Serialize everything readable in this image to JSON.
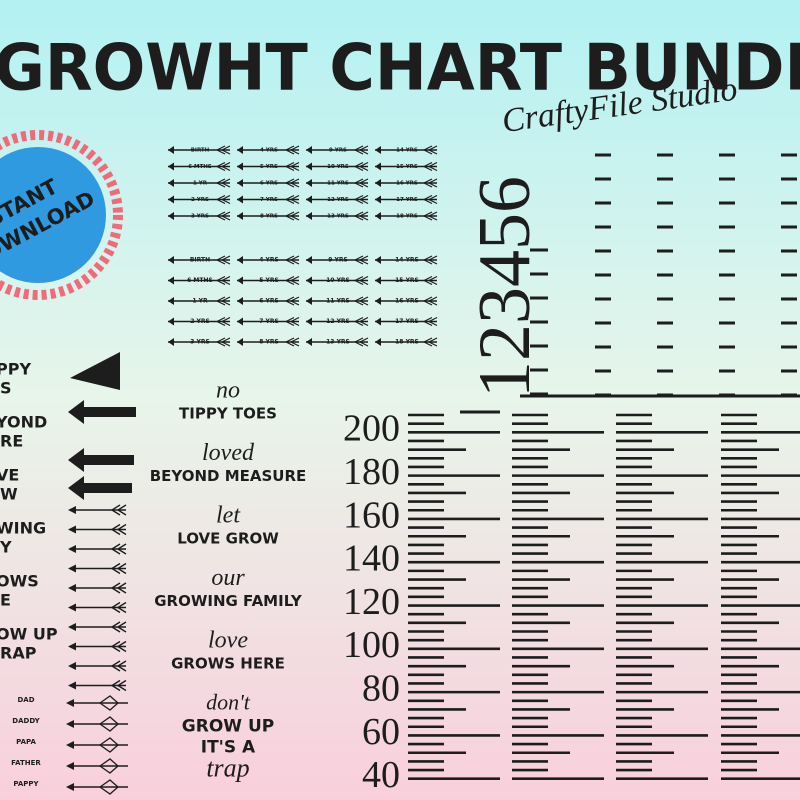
{
  "header": {
    "title": "GROWHT CHART BUNDL",
    "watermark": "CraftyFile Studio"
  },
  "badge": {
    "lines": [
      "STANT",
      "OWNLOAD"
    ]
  },
  "arrow_labels": {
    "columns": [
      [
        "BIRTH",
        "6 MTHS",
        "1 YR",
        "2 YRS",
        "3 YRS"
      ],
      [
        "4 YRS",
        "5 YRS",
        "6 YRS",
        "7 YRS",
        "8 YRS"
      ],
      [
        "9 YRS",
        "10 YRS",
        "11 YRS",
        "12 YRS",
        "13 YRS"
      ],
      [
        "14 YRS",
        "15 YRS",
        "16 YRS",
        "17 YRS",
        "18 YRS"
      ]
    ]
  },
  "vertical_digits": "123456",
  "ruler": {
    "labels": [
      200,
      180,
      160,
      140,
      120,
      100,
      80,
      60,
      40
    ]
  },
  "phrases": [
    {
      "script": "no",
      "caps": [
        "TIPPY TOES"
      ]
    },
    {
      "script": "loved",
      "caps": [
        "BEYOND MEASURE"
      ]
    },
    {
      "script": "let",
      "caps": [
        "LOVE GROW"
      ]
    },
    {
      "script": "our",
      "caps": [
        "GROWING FAMILY"
      ]
    },
    {
      "script": "love",
      "caps": [
        "GROWS HERE"
      ]
    },
    {
      "script": "don't",
      "caps": [
        "GROW UP",
        "IT'S A"
      ],
      "script_end": "trap"
    }
  ],
  "left_cropped": [
    "PPY",
    "S",
    "YOND",
    "RE",
    "VE",
    "W",
    "WING",
    "Y",
    "OWS",
    "E",
    "OW UP",
    "RAP"
  ],
  "left_names": [
    "DAD",
    "DADDY",
    "PAPA",
    "FATHER",
    "PAPPY"
  ]
}
